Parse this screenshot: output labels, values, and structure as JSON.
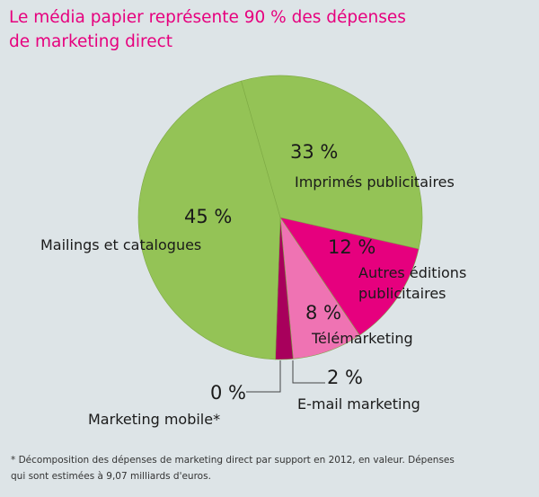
{
  "title_lines": [
    "Le média papier représente 90 % des dépenses",
    "de marketing direct"
  ],
  "footnote_lines": [
    "* Décomposition des dépenses de marketing direct par support en 2012, en valeur. Dépenses",
    "qui sont estimées à 9,07 milliards d'euros."
  ],
  "chart_data": {
    "type": "pie",
    "title": "Le média papier représente 90 % des dépenses de marketing direct",
    "slices": [
      {
        "label": "Imprimés publicitaires",
        "value": 33,
        "pct_label": "33 %",
        "color": "#94c356"
      },
      {
        "label": "Autres éditions publicitaires",
        "value": 12,
        "pct_label": "12 %",
        "color": "#e6007e"
      },
      {
        "label": "Télémarketing",
        "value": 8,
        "pct_label": "8 %",
        "color": "#ef73b3"
      },
      {
        "label": "E-mail marketing",
        "value": 2,
        "pct_label": "2 %",
        "color": "#a8005c"
      },
      {
        "label": "Marketing mobile*",
        "value": 0,
        "pct_label": "0 %",
        "color": "#94c356"
      },
      {
        "label": "Mailings et catalogues",
        "value": 45,
        "pct_label": "45 %",
        "color": "#94c356"
      }
    ]
  }
}
